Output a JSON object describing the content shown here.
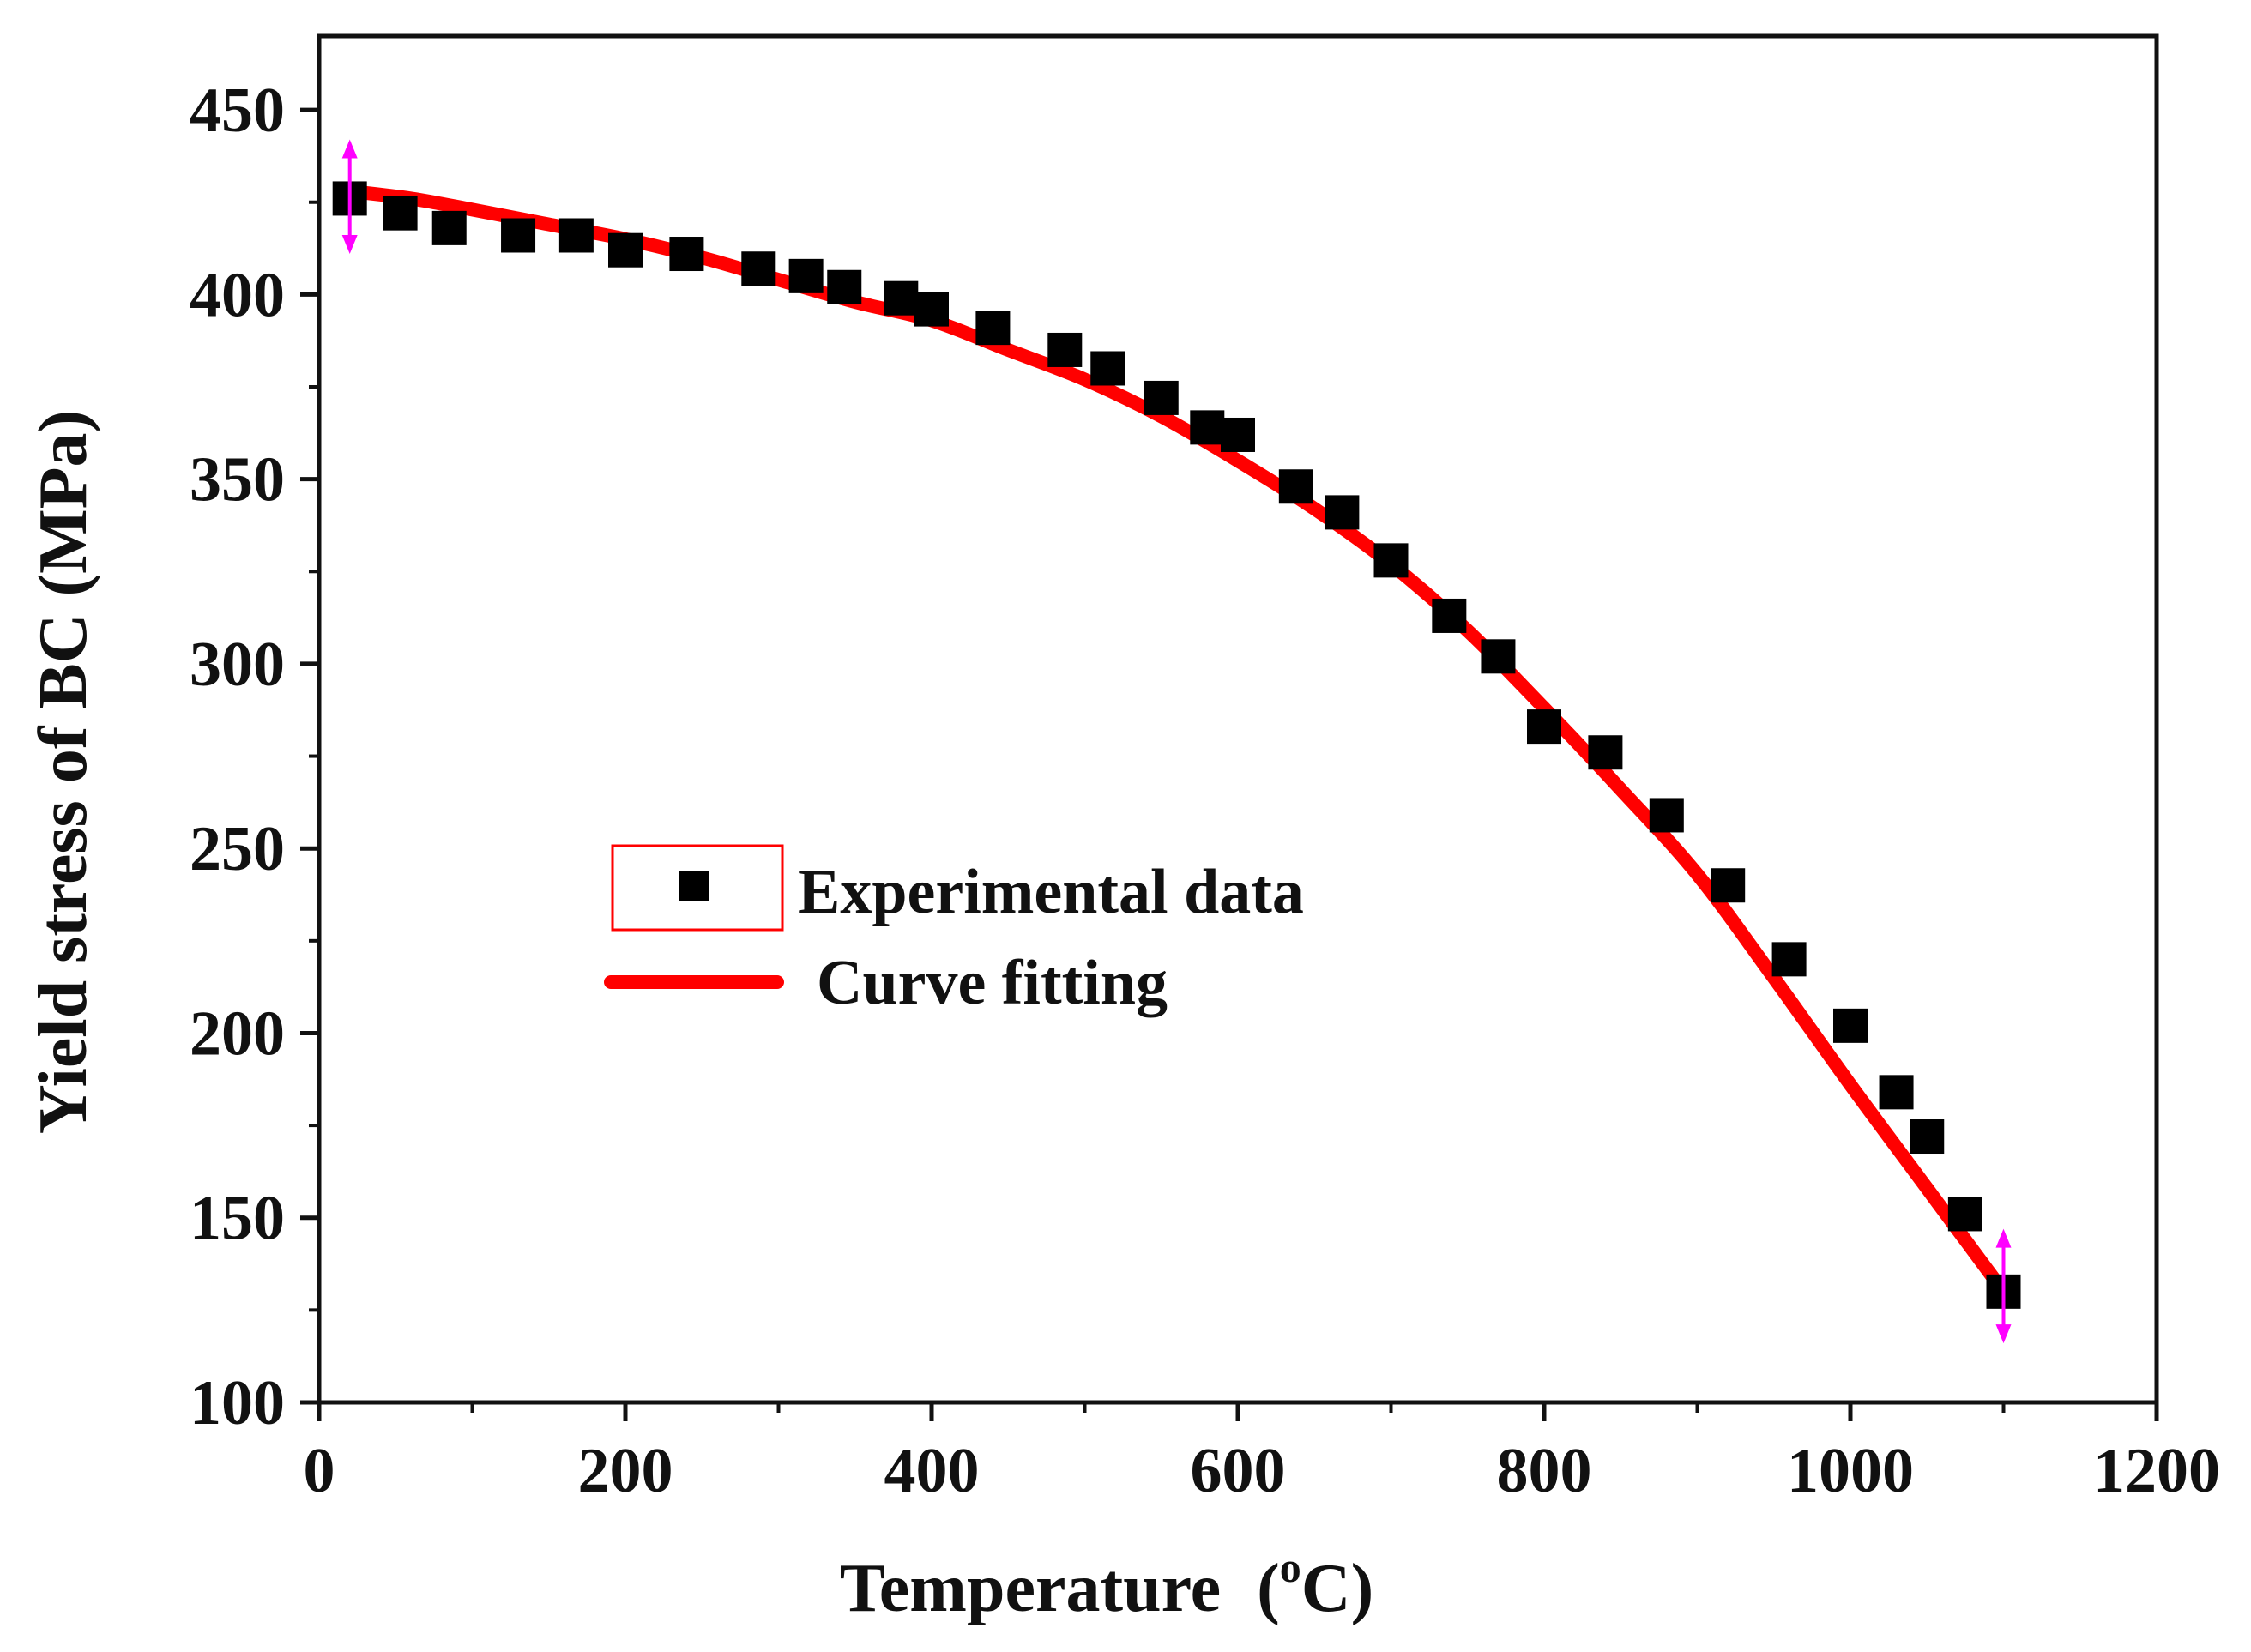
{
  "chart_data": {
    "type": "scatter",
    "title": "",
    "xlabel": "Temperature",
    "xlabel_unit_prefix": "(",
    "xlabel_unit_sup": "o",
    "xlabel_unit_main": "C)",
    "ylabel": "Yield stress of BC (MPa)",
    "xlim": [
      0,
      1200
    ],
    "ylim": [
      100,
      470
    ],
    "xticks": [
      0,
      200,
      400,
      600,
      800,
      1000,
      1200
    ],
    "yticks": [
      100,
      150,
      200,
      250,
      300,
      350,
      400,
      450
    ],
    "x_minor_step": 100,
    "y_minor_step": 25,
    "grid": false,
    "legend_position": "center-left",
    "colors": {
      "experimental": "#000000",
      "fit": "#ff0000",
      "error_bar": "#ff00ff",
      "legend_box": "#ff0000"
    },
    "series": [
      {
        "name": "Experimental data",
        "kind": "scatter",
        "x": [
          20,
          53,
          85,
          130,
          168,
          200,
          240,
          287,
          318,
          343,
          380,
          400,
          440,
          487,
          515,
          550,
          580,
          600,
          638,
          668,
          700,
          738,
          770,
          800,
          840,
          880,
          920,
          960,
          1000,
          1030,
          1050,
          1075,
          1100
        ],
        "y": [
          426,
          422,
          418,
          416,
          416,
          412,
          411,
          407,
          405,
          402,
          399,
          396,
          391,
          385,
          380,
          372,
          364,
          362,
          348,
          341,
          328,
          313,
          302,
          283,
          276,
          259,
          240,
          220,
          202,
          184,
          172,
          151,
          130
        ]
      },
      {
        "name": "Curve fitting",
        "kind": "line",
        "x": [
          20,
          60,
          100,
          150,
          200,
          250,
          300,
          350,
          400,
          450,
          500,
          550,
          600,
          650,
          700,
          750,
          800,
          850,
          900,
          950,
          1000,
          1050,
          1100
        ],
        "y": [
          428,
          426,
          423,
          419,
          415,
          410,
          404,
          398,
          393,
          385,
          377,
          367,
          355,
          342,
          327,
          309,
          288,
          266,
          243,
          215,
          186,
          158,
          130
        ]
      }
    ],
    "error_bars": [
      {
        "x": 20,
        "low": 411,
        "high": 442
      },
      {
        "x": 1100,
        "low": 116,
        "high": 147
      }
    ]
  }
}
